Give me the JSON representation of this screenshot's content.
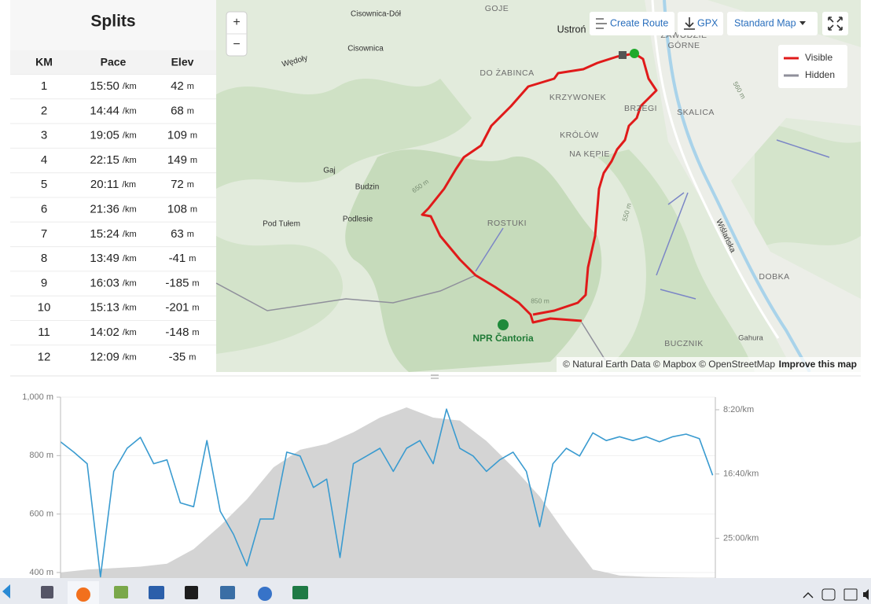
{
  "splits": {
    "title": "Splits",
    "columns": [
      "KM",
      "Pace",
      "Elev"
    ],
    "rows": [
      [
        "1",
        "15:50",
        "/km",
        "42",
        "m"
      ],
      [
        "2",
        "14:44",
        "/km",
        "68",
        "m"
      ],
      [
        "3",
        "19:05",
        "/km",
        "109",
        "m"
      ],
      [
        "4",
        "22:15",
        "/km",
        "149",
        "m"
      ],
      [
        "5",
        "20:11",
        "/km",
        "72",
        "m"
      ],
      [
        "6",
        "21:36",
        "/km",
        "108",
        "m"
      ],
      [
        "7",
        "15:24",
        "/km",
        "63",
        "m"
      ],
      [
        "8",
        "13:49",
        "/km",
        "-41",
        "m"
      ],
      [
        "9",
        "16:03",
        "/km",
        "-185",
        "m"
      ],
      [
        "10",
        "15:13",
        "/km",
        "-201",
        "m"
      ],
      [
        "11",
        "14:02",
        "/km",
        "-148",
        "m"
      ],
      [
        "12",
        "12:09",
        "/km",
        "-35",
        "m"
      ]
    ]
  },
  "map": {
    "zoom_in": "+",
    "zoom_out": "−",
    "create_route": "Create Route",
    "gpx": "GPX",
    "style": "Standard Map",
    "legend": {
      "visible": "Visible",
      "hidden": "Hidden"
    },
    "labels": [
      "Cisownica-Dół",
      "GOJE",
      "Ustroń",
      "ZAWODZIE",
      "GÓRNE",
      "Wędoły",
      "Cisownica",
      "DO ŻABINCA",
      "KRZYWONEK",
      "BRZEGI",
      "SKALICA",
      "KRÓLÓW",
      "NA KĘPIE",
      "Gaj",
      "Budzin",
      "Podlesie",
      "Pod Tułem",
      "ROSTUKI",
      "650 m",
      "550 m",
      "560 m",
      "Wiślańska",
      "DOBKA",
      "850 m",
      "NPR Čantoria",
      "BUCZNIK",
      "Gahura"
    ],
    "attribution": "© Natural Earth Data © Mapbox © OpenStreetMap",
    "improve": "Improve this map"
  },
  "chart_data": {
    "type": "line",
    "series": [
      {
        "color": "#d4d4d4",
        "fill": true,
        "x": [
          0,
          0.5,
          1,
          1.5,
          2,
          2.5,
          3,
          3.5,
          4,
          4.5,
          5,
          5.5,
          6,
          6.5,
          7,
          7.5,
          8,
          8.5,
          9,
          9.5,
          10,
          10.5,
          11,
          11.5,
          12,
          12.3
        ],
        "values": [
          400,
          410,
          415,
          420,
          430,
          480,
          560,
          650,
          760,
          820,
          840,
          880,
          930,
          965,
          930,
          920,
          850,
          760,
          660,
          530,
          410,
          390,
          385,
          383,
          382,
          382
        ]
      },
      {
        "color": "#3a9bd0",
        "axis": "y2",
        "x": [
          0,
          0.25,
          0.5,
          0.75,
          1,
          1.25,
          1.5,
          1.75,
          2,
          2.25,
          2.5,
          2.75,
          3,
          3.25,
          3.5,
          3.75,
          4,
          4.25,
          4.5,
          4.75,
          5,
          5.25,
          5.5,
          5.75,
          6,
          6.25,
          6.5,
          6.75,
          7,
          7.25,
          7.5,
          7.75,
          8,
          8.25,
          8.5,
          8.75,
          9,
          9.25,
          9.5,
          9.75,
          10,
          10.25,
          10.5,
          10.75,
          11,
          11.25,
          11.5,
          11.75,
          12,
          12.25
        ],
        "values": [
          750,
          830,
          920,
          1800,
          980,
          800,
          715,
          920,
          890,
          1225,
          1255,
          740,
          1290,
          1470,
          1715,
          1350,
          1350,
          830,
          860,
          1105,
          1040,
          1650,
          920,
          860,
          800,
          980,
          800,
          740,
          920,
          495,
          800,
          860,
          980,
          890,
          830,
          980,
          1410,
          920,
          800,
          860,
          680,
          740,
          710,
          740,
          710,
          750,
          710,
          690,
          725,
          1010
        ]
      }
    ],
    "xlim": [
      0,
      12.3
    ],
    "ylim": [
      381,
      1000
    ],
    "yticks": [
      {
        "value": 1000,
        "label": "1,000 m"
      },
      {
        "value": 800,
        "label": "800 m"
      },
      {
        "value": 600,
        "label": "600 m"
      },
      {
        "value": 400,
        "label": "400 m"
      }
    ],
    "y2lim": [
      402,
      1810
    ],
    "y2_inverted": true,
    "y2ticks": [
      {
        "value": 500,
        "label": "8:20/km"
      },
      {
        "value": 1000,
        "label": "16:40/km"
      },
      {
        "value": 1500,
        "label": "25:00/km"
      }
    ],
    "grid": true
  }
}
